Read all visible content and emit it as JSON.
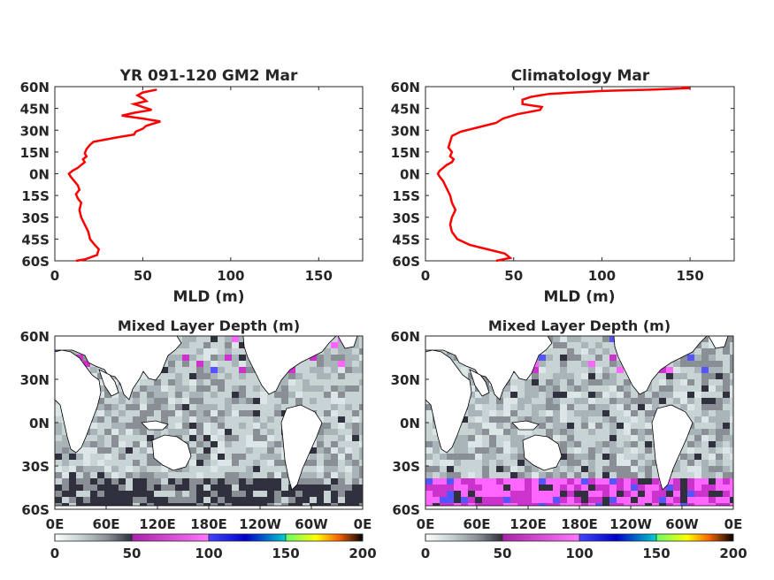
{
  "chart_data": [
    {
      "type": "line",
      "title": "YR 091-120 GM2 Mar",
      "xlabel": "MLD (m)",
      "ylabel": "",
      "xlim": [
        0,
        175
      ],
      "ylim": [
        -60,
        60
      ],
      "xticks": [
        "0",
        "50",
        "100",
        "150"
      ],
      "yticks": [
        "60S",
        "45S",
        "30S",
        "15S",
        "0N",
        "15N",
        "30N",
        "45N",
        "60N"
      ],
      "line_color": "#ff0000",
      "series": [
        {
          "x": [
            12,
            17,
            24,
            25,
            22,
            20,
            19,
            17,
            15,
            14,
            15,
            13,
            12,
            14,
            13,
            11,
            9,
            8,
            10,
            13,
            15,
            17,
            16,
            18,
            17,
            18,
            20,
            22,
            35,
            45,
            46,
            50,
            52,
            60,
            50,
            38,
            45,
            55,
            50,
            45,
            52,
            50,
            47,
            50,
            58
          ],
          "y": [
            -60,
            -59,
            -56,
            -52,
            -48,
            -45,
            -40,
            -35,
            -30,
            -25,
            -20,
            -17,
            -14,
            -11,
            -8,
            -5,
            -2,
            0,
            2,
            4,
            6,
            8,
            10,
            12,
            14,
            17,
            20,
            22,
            25,
            27,
            29,
            31,
            33,
            36,
            38,
            40,
            42,
            44,
            46,
            48,
            50,
            52,
            54,
            56,
            58
          ]
        }
      ]
    },
    {
      "type": "line",
      "title": "Climatology Mar",
      "xlabel": "MLD (m)",
      "ylabel": "",
      "xlim": [
        0,
        175
      ],
      "ylim": [
        -60,
        60
      ],
      "xticks": [
        "0",
        "50",
        "100",
        "150"
      ],
      "yticks": [
        "60S",
        "45S",
        "30S",
        "15S",
        "0N",
        "15N",
        "30N",
        "45N",
        "60N"
      ],
      "line_color": "#ff0000",
      "series": [
        {
          "x": [
            40,
            48,
            45,
            35,
            25,
            18,
            15,
            14,
            15,
            17,
            15,
            14,
            12,
            10,
            8,
            7,
            8,
            10,
            12,
            15,
            16,
            14,
            15,
            13,
            14,
            15,
            20,
            30,
            40,
            44,
            52,
            65,
            66,
            55,
            55,
            60,
            70,
            100,
            130,
            150,
            145
          ],
          "y": [
            -60,
            -58,
            -55,
            -52,
            -49,
            -45,
            -40,
            -35,
            -30,
            -25,
            -20,
            -15,
            -10,
            -5,
            -2,
            0,
            2,
            4,
            6,
            8,
            10,
            12,
            15,
            18,
            22,
            26,
            29,
            32,
            35,
            38,
            41,
            44,
            46,
            48,
            51,
            53,
            55,
            57,
            58,
            59,
            59.5
          ]
        }
      ]
    },
    {
      "type": "heatmap",
      "title": "Mixed Layer Depth (m)",
      "xticks": [
        "0E",
        "60E",
        "120E",
        "180E",
        "120W",
        "60W",
        "0E"
      ],
      "yticks": [
        "60S",
        "30S",
        "0N",
        "30N",
        "60N"
      ],
      "colorbar": {
        "ticks": [
          "0",
          "50",
          "100",
          "150",
          "200"
        ],
        "range": [
          0,
          200
        ]
      }
    },
    {
      "type": "heatmap",
      "title": "Mixed Layer Depth (m)",
      "xticks": [
        "0E",
        "60E",
        "120E",
        "180E",
        "120W",
        "60W",
        "0E"
      ],
      "yticks": [
        "60S",
        "30S",
        "0N",
        "30N",
        "60N"
      ],
      "colorbar": {
        "ticks": [
          "0",
          "50",
          "100",
          "150",
          "200"
        ],
        "range": [
          0,
          200
        ]
      }
    }
  ],
  "colormap": {
    "stops": [
      "#ffffff",
      "#c8d4d4",
      "#8a8f96",
      "#30303e",
      "#cc33cc",
      "#ff66ff",
      "#5555ff",
      "#0000ee",
      "#00bbbb",
      "#66ff66",
      "#ffff00",
      "#ff8800",
      "#dd0000",
      "#000000"
    ]
  },
  "map_colors": {
    "land": "#ffffff",
    "coast": "#000000"
  }
}
